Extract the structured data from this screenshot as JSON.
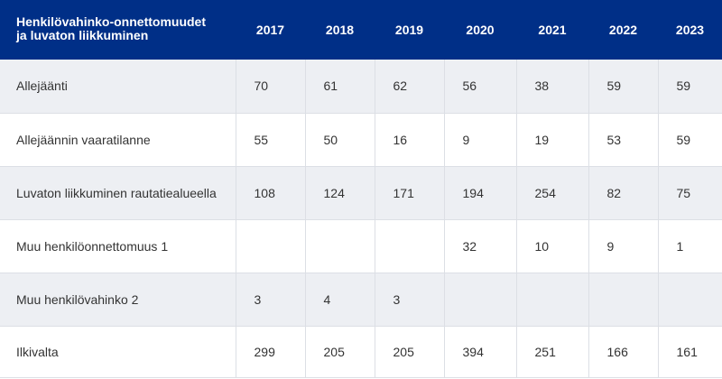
{
  "table": {
    "header": {
      "label_lines": [
        "Henkilövahinko-onnettomuudet",
        "ja luvaton liikkuminen"
      ],
      "years": [
        "2017",
        "2018",
        "2019",
        "2020",
        "2021",
        "2022",
        "2023"
      ]
    },
    "rows": [
      {
        "label": "Allejäänti",
        "values": [
          "70",
          "61",
          "62",
          "56",
          "38",
          "59",
          "59"
        ]
      },
      {
        "label": "Allejäännin vaaratilanne",
        "values": [
          "55",
          "50",
          "16",
          "9",
          "19",
          "53",
          "59"
        ]
      },
      {
        "label": "Luvaton liikkuminen rautatiealueella",
        "values": [
          "108",
          "124",
          "171",
          "194",
          "254",
          "82",
          "75"
        ]
      },
      {
        "label": "Muu henkilöonnettomuus 1",
        "values": [
          "",
          "",
          "",
          "32",
          "10",
          "9",
          "1"
        ]
      },
      {
        "label": "Muu henkilövahinko 2",
        "values": [
          "3",
          "4",
          "3",
          "",
          "",
          "",
          ""
        ]
      },
      {
        "label": "Ilkivalta",
        "values": [
          "299",
          "205",
          "205",
          "394",
          "251",
          "166",
          "161"
        ]
      }
    ]
  },
  "colors": {
    "header_bg": "#002f87",
    "header_text": "#ffffff",
    "row_alt_bg": "#edeff3",
    "row_bg": "#ffffff",
    "cell_text": "#333333"
  }
}
